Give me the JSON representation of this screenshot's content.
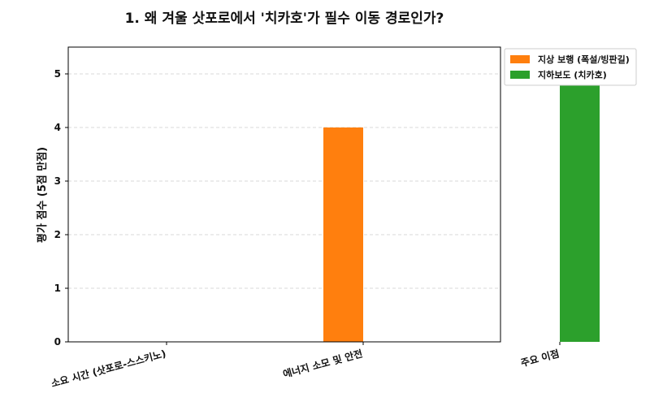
{
  "chart_data": {
    "type": "bar",
    "title": "1. 왜 겨울 삿포로에서 '치카호'가 필수 이동 경로인가?",
    "xlabel": "",
    "ylabel": "평가 점수 (5점 만점)",
    "categories": [
      "소요 시간 (삿포로-스스키노)",
      "에너지 소모 및 안전",
      "주요 이점"
    ],
    "series": [
      {
        "name": "지상 보행 (폭설/빙판길)",
        "color": "#ff7f0e",
        "values": [
          0,
          4,
          null
        ]
      },
      {
        "name": "지하보도 (치카호)",
        "color": "#2ca02c",
        "values": [
          0,
          null,
          5
        ]
      }
    ],
    "ylim": [
      0,
      5.5
    ],
    "yticks": [
      0,
      1,
      2,
      3,
      4,
      5
    ],
    "grid": true,
    "legend_position": "outside-top-right"
  }
}
